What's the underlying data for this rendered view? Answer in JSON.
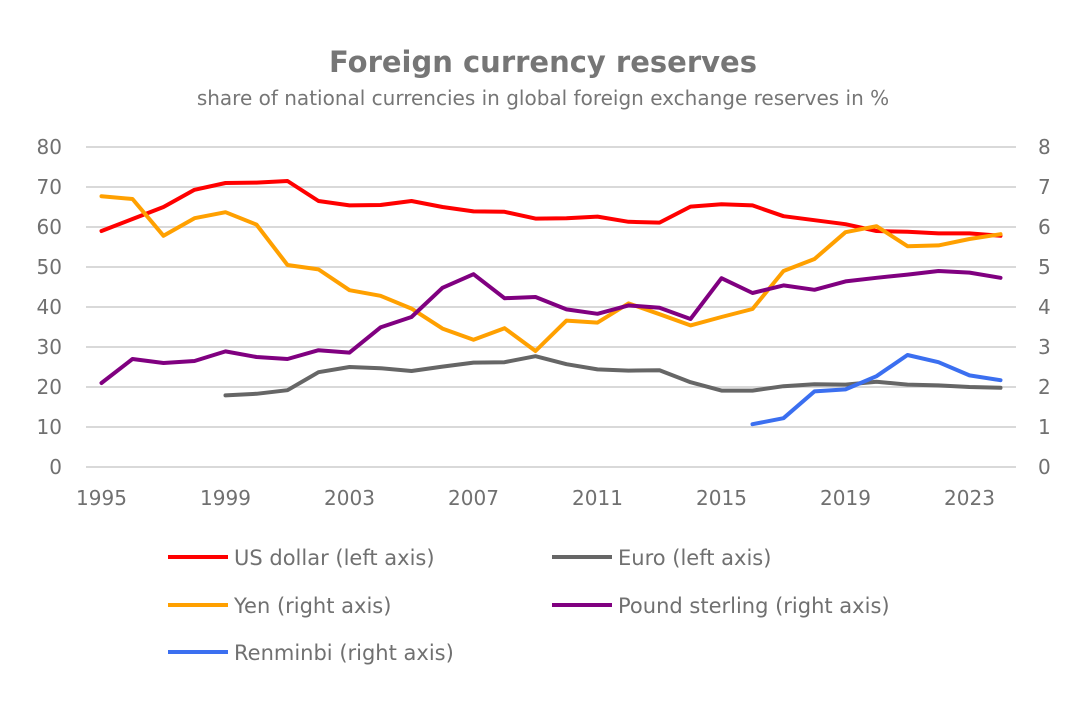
{
  "chart_data": {
    "type": "line",
    "title": "Foreign currency reserves",
    "subtitle": "share of national currencies in global foreign exchange reserves in %",
    "xlabel": "",
    "ylabel_left": "",
    "ylabel_right": "",
    "x": [
      1995,
      1996,
      1997,
      1998,
      1999,
      2000,
      2001,
      2002,
      2003,
      2004,
      2005,
      2006,
      2007,
      2008,
      2009,
      2010,
      2011,
      2012,
      2013,
      2014,
      2015,
      2016,
      2017,
      2018,
      2019,
      2020,
      2021,
      2022,
      2023,
      2024
    ],
    "x_tick_labels": [
      "1995",
      "1999",
      "2003",
      "2007",
      "2011",
      "2015",
      "2019",
      "2023"
    ],
    "ylim_left": [
      0,
      80
    ],
    "ylim_right": [
      0,
      8
    ],
    "y_ticks_left": [
      "0",
      "10",
      "20",
      "30",
      "40",
      "50",
      "60",
      "70",
      "80"
    ],
    "y_ticks_right": [
      "0",
      "1",
      "2",
      "3",
      "4",
      "5",
      "6",
      "7",
      "8"
    ],
    "grid": true,
    "legend_position": "bottom",
    "series": [
      {
        "name": "US dollar (left axis)",
        "axis": "left",
        "color": "#ff0000",
        "values": [
          59.0,
          62.0,
          65.0,
          69.3,
          71.0,
          71.1,
          71.5,
          66.5,
          65.4,
          65.5,
          66.5,
          65.0,
          63.9,
          63.8,
          62.1,
          62.2,
          62.6,
          61.3,
          61.1,
          65.1,
          65.7,
          65.4,
          62.7,
          61.7,
          60.7,
          59.0,
          58.8,
          58.4,
          58.4,
          57.8
        ]
      },
      {
        "name": "Euro (left axis)",
        "axis": "left",
        "color": "#666666",
        "values": [
          null,
          null,
          null,
          null,
          17.9,
          18.3,
          19.2,
          23.7,
          25.0,
          24.7,
          24.0,
          25.1,
          26.1,
          26.2,
          27.7,
          25.7,
          24.4,
          24.1,
          24.2,
          21.2,
          19.1,
          19.1,
          20.2,
          20.7,
          20.6,
          21.3,
          20.6,
          20.4,
          20.0,
          19.8
        ]
      },
      {
        "name": "Yen (right axis)",
        "axis": "right",
        "color": "#ffa000",
        "values": [
          6.77,
          6.7,
          5.78,
          6.22,
          6.37,
          6.06,
          5.05,
          4.94,
          4.42,
          4.28,
          3.96,
          3.46,
          3.18,
          3.47,
          2.9,
          3.66,
          3.61,
          4.09,
          3.82,
          3.54,
          3.75,
          3.95,
          4.9,
          5.2,
          5.87,
          6.02,
          5.52,
          5.54,
          5.7,
          5.82
        ]
      },
      {
        "name": "Pound sterling (right axis)",
        "axis": "right",
        "color": "#800080",
        "values": [
          2.1,
          2.7,
          2.6,
          2.65,
          2.89,
          2.75,
          2.7,
          2.92,
          2.86,
          3.49,
          3.75,
          4.48,
          4.82,
          4.22,
          4.25,
          3.94,
          3.83,
          4.04,
          3.98,
          3.7,
          4.72,
          4.35,
          4.54,
          4.43,
          4.64,
          4.73,
          4.81,
          4.9,
          4.86,
          4.73
        ]
      },
      {
        "name": "Renminbi (right axis)",
        "axis": "right",
        "color": "#3b6ff0",
        "values": [
          null,
          null,
          null,
          null,
          null,
          null,
          null,
          null,
          null,
          null,
          null,
          null,
          null,
          null,
          null,
          null,
          null,
          null,
          null,
          null,
          null,
          1.07,
          1.22,
          1.89,
          1.94,
          2.27,
          2.8,
          2.62,
          2.29,
          2.17
        ]
      }
    ]
  }
}
